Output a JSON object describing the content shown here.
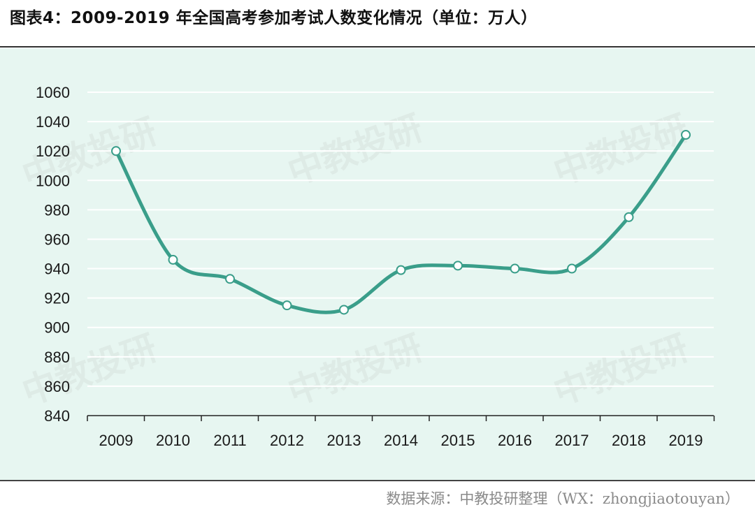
{
  "header": {
    "title": "图表4：2009-2019 年全国高考参加考试人数变化情况（单位：万人）"
  },
  "footer": {
    "source": "数据来源：中教投研整理（WX：zhongjiaotouyan）"
  },
  "watermark": {
    "text": "中教投研"
  },
  "colors": {
    "line": "#3a9e8a",
    "grid": "#ffffff",
    "panel_bg": "#e7f6f1",
    "marker_fill": "#ffffff"
  },
  "chart_data": {
    "type": "line",
    "title": "图表4：2009-2019 年全国高考参加考试人数变化情况（单位：万人）",
    "xlabel": "",
    "ylabel": "",
    "x": [
      "2009",
      "2010",
      "2011",
      "2012",
      "2013",
      "2014",
      "2015",
      "2016",
      "2017",
      "2018",
      "2019"
    ],
    "series": [
      {
        "values": [
          1020,
          946,
          933,
          915,
          912,
          939,
          942,
          940,
          940,
          975,
          1031
        ]
      }
    ],
    "ylim": [
      840,
      1060
    ],
    "yticks": [
      "840",
      "860",
      "880",
      "900",
      "920",
      "940",
      "960",
      "980",
      "1000",
      "1020",
      "1040",
      "1060"
    ],
    "grid": true,
    "legend": "none",
    "smooth": true
  }
}
